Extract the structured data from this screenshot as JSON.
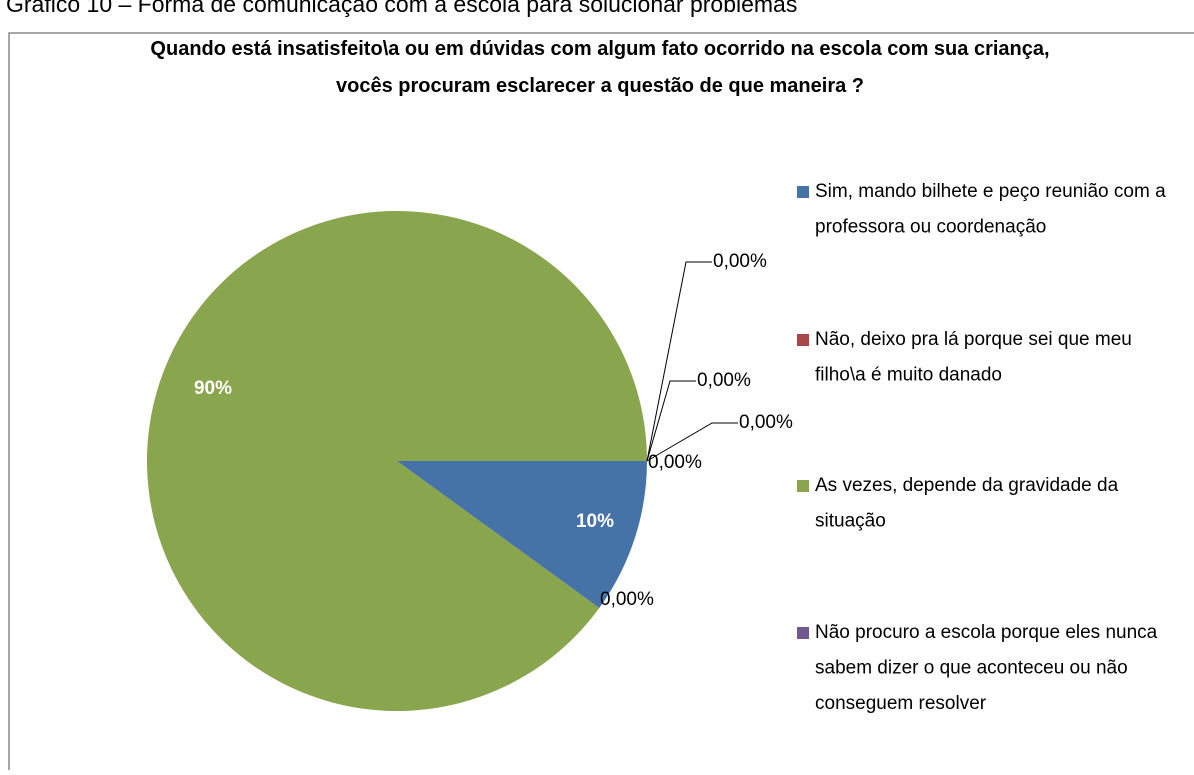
{
  "caption": "Gráfico 10 – Forma de comunicação com a escola para solucionar problemas",
  "chart_data": {
    "type": "pie",
    "title": "Quando está insatisfeito\\a ou em dúvidas com algum fato ocorrido na escola com sua criança, vocês procuram esclarecer a questão de que maneira ?",
    "categories": [
      "Sim, mando bilhete e peço reunião com a professora ou coordenação",
      "Não, deixo pra lá porque sei que meu filho\\a é muito danado",
      "As vezes, depende da gravidade da situação",
      "Não procuro a escola porque eles nunca sabem dizer o que aconteceu ou não conseguem resolver",
      null,
      null,
      null
    ],
    "values": [
      10,
      0,
      90,
      0,
      0,
      0,
      0
    ],
    "value_labels": [
      "10%",
      "0,00%",
      "90%",
      "0,00%",
      "0,00%",
      "0,00%",
      "0,00%"
    ],
    "colors": [
      "#4572A7",
      "#AA4643",
      "#89A54E",
      "#71588F",
      "#4198AF",
      "#DB843D",
      "#93A9CF"
    ],
    "legend": "right"
  }
}
